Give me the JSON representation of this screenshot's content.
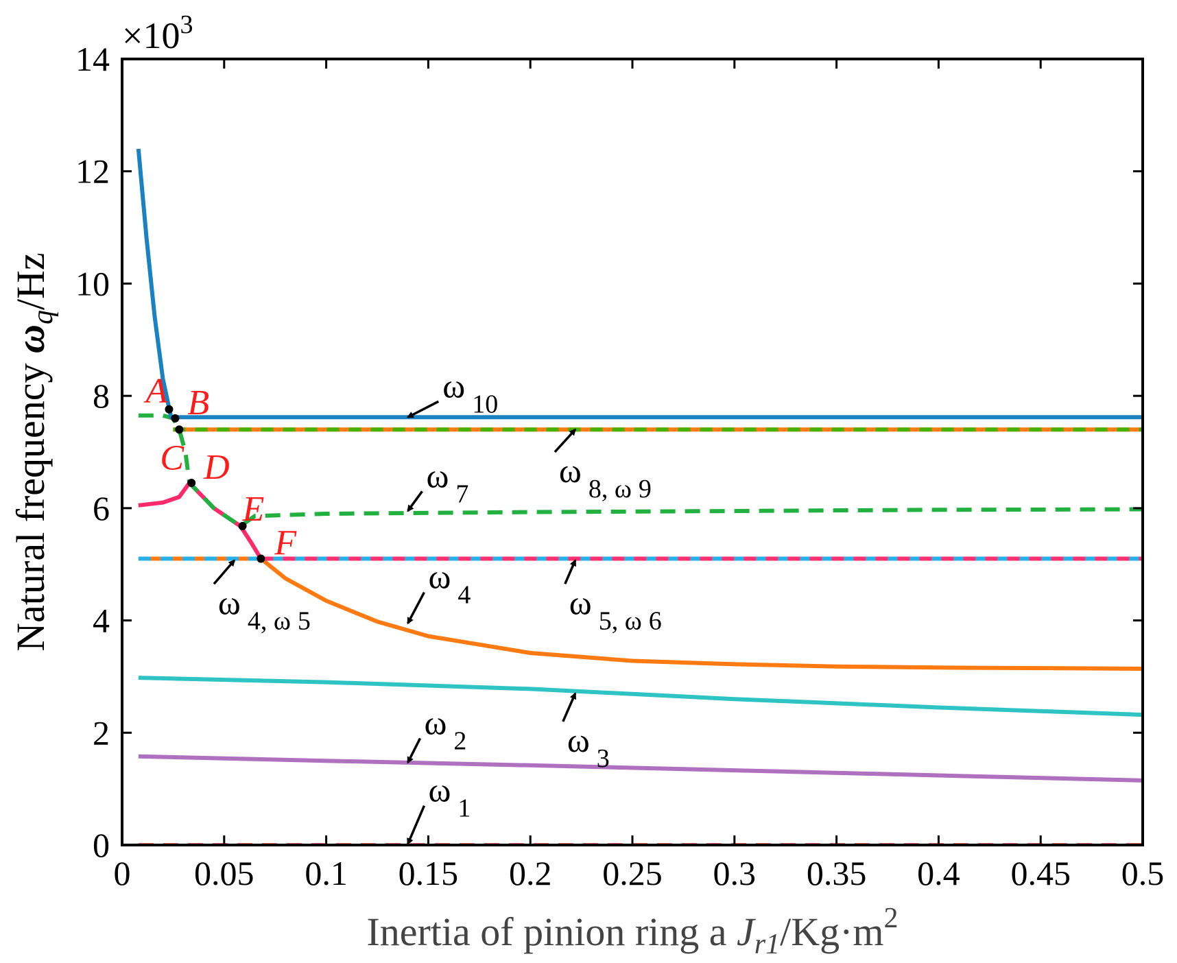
{
  "chart_data": {
    "type": "line",
    "xlabel": {
      "pre": "Inertia of pinion ring a ",
      "var": "J",
      "sub": "r1",
      "unit": "/Kg·m",
      "sup": "2"
    },
    "ylabel": {
      "pre": "Natural frequency ",
      "var": "ω",
      "sub": "q",
      "unit": "/Hz"
    },
    "yscale": {
      "prefix": "×10",
      "exp": "3"
    },
    "xlim": [
      0,
      0.5
    ],
    "ylim": [
      0,
      14
    ],
    "xticks": [
      0,
      0.05,
      0.1,
      0.15,
      0.2,
      0.25,
      0.3,
      0.35,
      0.4,
      0.45,
      0.5
    ],
    "xtick_labels": [
      "0",
      "0.05",
      "0.1",
      "0.15",
      "0.2",
      "0.25",
      "0.3",
      "0.35",
      "0.4",
      "0.45",
      "0.5"
    ],
    "yticks": [
      0,
      2,
      4,
      6,
      8,
      10,
      12,
      14
    ],
    "ytick_labels": [
      "0",
      "2",
      "4",
      "6",
      "8",
      "10",
      "12",
      "14"
    ],
    "grid": false,
    "series": [
      {
        "key": "w1",
        "color": "#f07070",
        "dash": true,
        "x": [
          0.008,
          0.1,
          0.2,
          0.3,
          0.4,
          0.5
        ],
        "y": [
          0,
          0,
          0,
          0,
          0,
          0
        ]
      },
      {
        "key": "w2",
        "color": "#b070c0",
        "dash": false,
        "x": [
          0.008,
          0.1,
          0.2,
          0.3,
          0.4,
          0.5
        ],
        "y": [
          1.58,
          1.5,
          1.42,
          1.33,
          1.24,
          1.15
        ]
      },
      {
        "key": "w3",
        "color": "#2ec4c4",
        "dash": false,
        "x": [
          0.008,
          0.1,
          0.2,
          0.3,
          0.4,
          0.5
        ],
        "y": [
          2.98,
          2.9,
          2.78,
          2.6,
          2.45,
          2.32
        ]
      },
      {
        "key": "w4_lower",
        "color": "#ff7a10",
        "dash": false,
        "x": [
          0.068,
          0.08,
          0.1,
          0.125,
          0.15,
          0.2,
          0.25,
          0.3,
          0.35,
          0.4,
          0.45,
          0.5
        ],
        "y": [
          5.1,
          4.75,
          4.35,
          3.98,
          3.72,
          3.42,
          3.28,
          3.22,
          3.18,
          3.16,
          3.15,
          3.14
        ]
      },
      {
        "key": "w4_w5",
        "color": "#ff7a10",
        "dash2": "#2ab0e8",
        "dash": true,
        "x": [
          0.008,
          0.5
        ],
        "y": [
          5.1,
          5.1
        ]
      },
      {
        "key": "w5_w6",
        "color": "#2ab0e8",
        "dash2": "#ff3070",
        "dash": true,
        "x": [
          0.068,
          0.5
        ],
        "y": [
          5.1,
          5.1
        ]
      },
      {
        "key": "w_pink",
        "color": "#ff2a6a",
        "dash": false,
        "x": [
          0.008,
          0.02,
          0.028,
          0.033,
          0.045,
          0.058,
          0.063,
          0.068
        ],
        "y": [
          6.05,
          6.1,
          6.2,
          6.45,
          6.0,
          5.68,
          5.4,
          5.1
        ]
      },
      {
        "key": "w7",
        "color": "#22b040",
        "dash": true,
        "x": [
          0.008,
          0.02,
          0.025,
          0.028,
          0.031,
          0.033,
          0.045,
          0.058,
          0.065,
          0.1,
          0.2,
          0.3,
          0.4,
          0.5
        ],
        "y": [
          7.65,
          7.65,
          7.6,
          7.4,
          7.0,
          6.45,
          6.0,
          5.68,
          5.86,
          5.9,
          5.93,
          5.95,
          5.97,
          5.98
        ]
      },
      {
        "key": "w8_w9",
        "color": "#ff7a10",
        "dash2": "#4ab000",
        "dash": true,
        "x": [
          0.025,
          0.5
        ],
        "y": [
          7.4,
          7.4
        ]
      },
      {
        "key": "w10",
        "color": "#1a82c0",
        "dash": false,
        "x": [
          0.008,
          0.012,
          0.016,
          0.02,
          0.024,
          0.5
        ],
        "y": [
          12.4,
          10.8,
          9.4,
          8.3,
          7.62,
          7.62
        ]
      }
    ],
    "points": [
      {
        "label": "A",
        "x": 0.023,
        "y": 7.76
      },
      {
        "label": "B",
        "x": 0.026,
        "y": 7.6
      },
      {
        "label": "C",
        "x": 0.028,
        "y": 7.4
      },
      {
        "label": "D",
        "x": 0.034,
        "y": 6.45
      },
      {
        "label": "E",
        "x": 0.059,
        "y": 5.68
      },
      {
        "label": "F",
        "x": 0.068,
        "y": 5.1
      }
    ],
    "annotations": [
      {
        "sym": "ω",
        "sub": "10",
        "tail": [
          0.155,
          7.9
        ],
        "head": [
          0.14,
          7.62
        ]
      },
      {
        "sym": "ω",
        "sub": "7",
        "tail": [
          0.147,
          6.3
        ],
        "head": [
          0.14,
          5.95
        ]
      },
      {
        "sym": "ω",
        "sub": "8, ω",
        "sub2": "9",
        "tail": [
          0.212,
          7.0
        ],
        "head": [
          0.222,
          7.4
        ]
      },
      {
        "sym": "ω",
        "sub": "4, ω",
        "sub2": "5",
        "tail": [
          0.045,
          4.65
        ],
        "head": [
          0.055,
          5.07
        ]
      },
      {
        "sym": "ω",
        "sub": "5, ω",
        "sub2": "6",
        "tail": [
          0.217,
          4.65
        ],
        "head": [
          0.222,
          5.07
        ]
      },
      {
        "sym": "ω",
        "sub": "4",
        "tail": [
          0.148,
          4.5
        ],
        "head": [
          0.14,
          3.95
        ]
      },
      {
        "sym": "ω",
        "sub": "3",
        "tail": [
          0.216,
          2.2
        ],
        "head": [
          0.222,
          2.7
        ]
      },
      {
        "sym": "ω",
        "sub": "2",
        "tail": [
          0.146,
          1.9
        ],
        "head": [
          0.14,
          1.47
        ]
      },
      {
        "sym": "ω",
        "sub": "1",
        "tail": [
          0.148,
          0.7
        ],
        "head": [
          0.14,
          0.02
        ]
      }
    ]
  }
}
